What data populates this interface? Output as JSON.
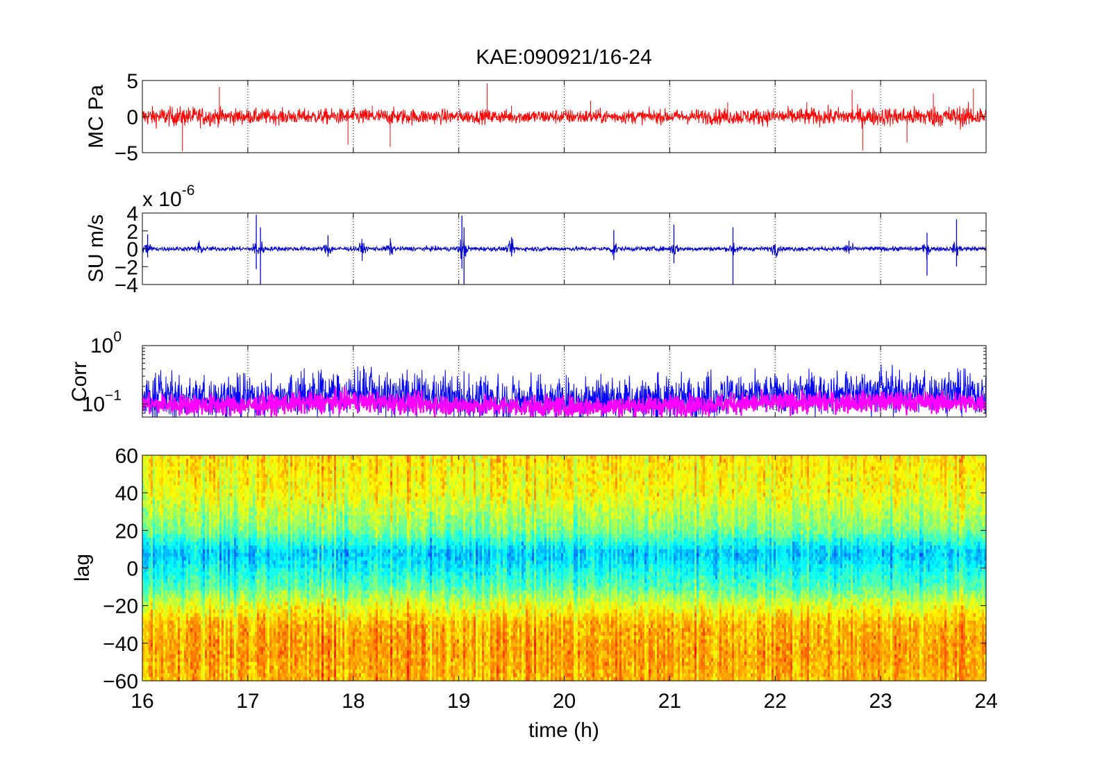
{
  "figure": {
    "title": "KAE:090921/16-24",
    "xlabel": "time (h)"
  },
  "chart_data": [
    {
      "type": "line",
      "ylabel": "MC Pa",
      "xlim": [
        16,
        24
      ],
      "ylim": [
        -5,
        5
      ],
      "yticks": [
        -5,
        0,
        5
      ],
      "xgrid": "dotted",
      "series": [
        {
          "color": "#ff0000",
          "amplitude_envelope": {
            "x": [
              16,
              16.5,
              17,
              17.5,
              18,
              18.5,
              19,
              19.5,
              20,
              20.5,
              21,
              21.5,
              22,
              22.5,
              23,
              23.5,
              24
            ],
            "y": [
              1.6,
              1.7,
              1.3,
              1.3,
              1.4,
              1.4,
              1.2,
              1.2,
              1.3,
              1.2,
              1.2,
              1.4,
              1.5,
              1.5,
              1.6,
              1.8,
              1.9
            ]
          },
          "spikes": {
            "x": [
              16.38,
              16.73,
              17.95,
              18.18,
              18.35,
              19.27,
              19.5,
              20.25,
              21.55,
              22.3,
              22.73,
              22.83,
              23.25,
              23.5,
              23.88
            ],
            "y": [
              -4.8,
              4.1,
              -3.9,
              1.5,
              -4.2,
              4.6,
              1.5,
              2.2,
              2.0,
              2.0,
              3.7,
              -4.7,
              -3.6,
              3.2,
              3.9
            ]
          }
        }
      ]
    },
    {
      "type": "line",
      "ylabel": "SU m/s",
      "exponent_label": "x 10",
      "exponent": "-6",
      "xlim": [
        16,
        24
      ],
      "ylim": [
        -4,
        4
      ],
      "yticks": [
        -4,
        -2,
        0,
        2,
        4
      ],
      "xgrid": "dotted",
      "series": [
        {
          "color": "#0000cc",
          "baseline_amplitude": 0.25,
          "events": {
            "x": [
              16.05,
              16.53,
              17.08,
              17.12,
              17.76,
              18.08,
              18.35,
              19.03,
              19.05,
              19.5,
              20.47,
              21.04,
              21.6,
              22.0,
              22.7,
              23.44,
              23.72
            ],
            "y": [
              1.6,
              0.7,
              3.8,
              -4.0,
              1.5,
              0.6,
              0.6,
              3.7,
              -4.0,
              1.3,
              2.1,
              2.7,
              -4.0,
              0.5,
              0.9,
              -3.0,
              3.3
            ]
          }
        }
      ]
    },
    {
      "type": "line",
      "ylabel": "Corr",
      "yscale": "log",
      "ytick_base": "10",
      "yticks": [
        0.1,
        1
      ],
      "ytick_exponents": [
        "−1",
        "0"
      ],
      "xlim": [
        16,
        24
      ],
      "ylim": [
        0.06,
        1
      ],
      "xgrid": "dotted",
      "series": [
        {
          "color": "#0000ff",
          "level": {
            "x": [
              16,
              17,
              18,
              19,
              20,
              21,
              22,
              23,
              24
            ],
            "y": [
              0.13,
              0.12,
              0.15,
              0.12,
              0.11,
              0.12,
              0.14,
              0.16,
              0.14
            ]
          }
        },
        {
          "color": "#ff00ff",
          "level": {
            "x": [
              16,
              17,
              18,
              19,
              20,
              21,
              22,
              23,
              24
            ],
            "y": [
              0.1,
              0.095,
              0.11,
              0.095,
              0.09,
              0.095,
              0.105,
              0.11,
              0.105
            ]
          }
        }
      ]
    },
    {
      "type": "heatmap",
      "ylabel": "lag",
      "xlim": [
        16,
        24
      ],
      "ylim": [
        -60,
        60
      ],
      "yticks": [
        -60,
        -40,
        -20,
        0,
        20,
        40,
        60
      ],
      "xticks": [
        16,
        17,
        18,
        19,
        20,
        21,
        22,
        23,
        24
      ],
      "colormap": "jet",
      "bands": {
        "lag": [
          60,
          40,
          20,
          8,
          0,
          -10,
          -20,
          -30,
          -45,
          -60
        ],
        "relative_level": [
          0.65,
          0.62,
          0.5,
          0.32,
          0.38,
          0.46,
          0.6,
          0.7,
          0.72,
          0.7
        ]
      }
    }
  ]
}
